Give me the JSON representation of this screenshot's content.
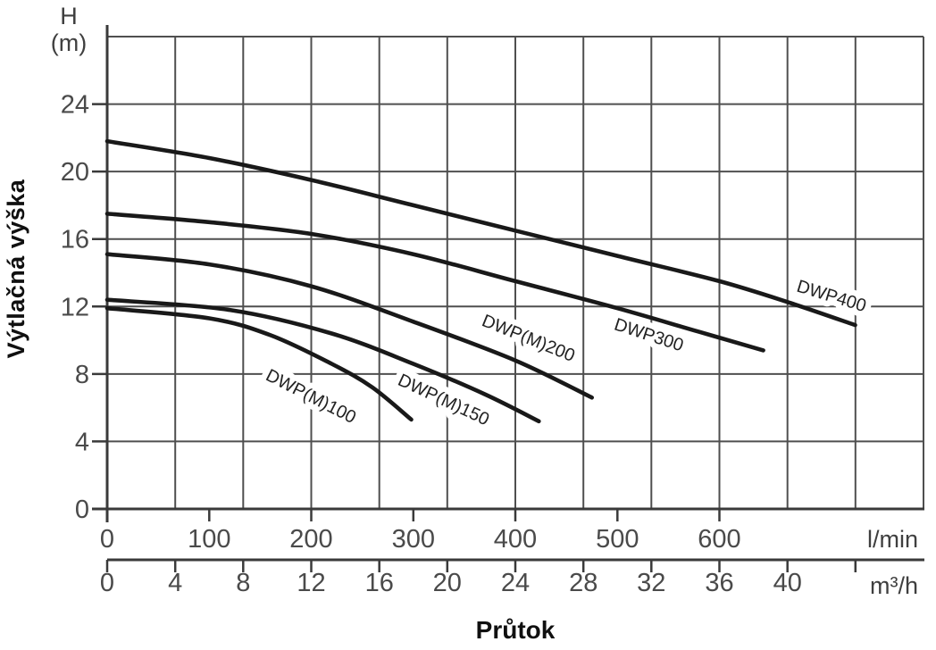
{
  "chart_data": {
    "type": "line",
    "x_title": "Průtok",
    "y_title": "Výtlačná výška",
    "y_axis": {
      "unit_line1": "H",
      "unit_line2": "(m)",
      "range_m": [
        0,
        28
      ],
      "ticks": [
        0,
        4,
        8,
        12,
        16,
        20,
        24
      ],
      "grid_step_m": 4
    },
    "x_axis_primary": {
      "unit": "l/min",
      "range_lmin": [
        0,
        800
      ],
      "ticks": [
        0,
        100,
        200,
        300,
        400,
        500,
        600
      ]
    },
    "x_axis_secondary": {
      "unit": "m³/h",
      "range_m3h": [
        0,
        48
      ],
      "ticks": [
        0,
        4,
        8,
        12,
        16,
        20,
        24,
        28,
        32,
        36,
        40
      ],
      "unlabeled_ticks": [
        44
      ],
      "grid_step_m3h": 4
    },
    "series": [
      {
        "name": "DWP(M)100",
        "points_lmin_m": [
          [
            0,
            11.9
          ],
          [
            100,
            11.3
          ],
          [
            160,
            10.3
          ],
          [
            220,
            8.6
          ],
          [
            260,
            7.2
          ],
          [
            298,
            5.3
          ]
        ],
        "label": {
          "q_lmin": 200,
          "h_m": 6.7,
          "angle_deg": 27
        }
      },
      {
        "name": "DWP(M)150",
        "points_lmin_m": [
          [
            0,
            12.4
          ],
          [
            120,
            11.8
          ],
          [
            220,
            10.4
          ],
          [
            300,
            8.6
          ],
          [
            370,
            6.8
          ],
          [
            423,
            5.2
          ]
        ],
        "label": {
          "q_lmin": 330,
          "h_m": 6.5,
          "angle_deg": 25
        }
      },
      {
        "name": "DWP(M)200",
        "points_lmin_m": [
          [
            0,
            15.1
          ],
          [
            100,
            14.5
          ],
          [
            200,
            13.2
          ],
          [
            300,
            11.1
          ],
          [
            400,
            8.8
          ],
          [
            475,
            6.6
          ]
        ],
        "label": {
          "q_lmin": 413,
          "h_m": 10.15,
          "angle_deg": 22
        }
      },
      {
        "name": "DWP300",
        "points_lmin_m": [
          [
            0,
            17.5
          ],
          [
            100,
            17.0
          ],
          [
            200,
            16.3
          ],
          [
            300,
            15.1
          ],
          [
            400,
            13.5
          ],
          [
            500,
            11.9
          ],
          [
            580,
            10.5
          ],
          [
            643,
            9.4
          ]
        ],
        "label": {
          "q_lmin": 531,
          "h_m": 10.35,
          "angle_deg": 18
        }
      },
      {
        "name": "DWP400",
        "points_lmin_m": [
          [
            0,
            21.8
          ],
          [
            100,
            20.8
          ],
          [
            200,
            19.5
          ],
          [
            300,
            18.0
          ],
          [
            400,
            16.5
          ],
          [
            500,
            15.0
          ],
          [
            600,
            13.5
          ],
          [
            670,
            12.2
          ],
          [
            733,
            10.9
          ]
        ],
        "label": {
          "q_lmin": 710,
          "h_m": 12.65,
          "angle_deg": 17
        }
      }
    ],
    "legend_position": "on-curve",
    "grid": "on"
  },
  "colors": {
    "background": "#ffffff",
    "grid": "#4f4f4f",
    "axis": "#3a3a3a",
    "curve": "#191919",
    "tick_text": "#4a4a4a",
    "title_text": "#101010",
    "curve_label_text": "#222222",
    "label_halo": "#ffffff"
  }
}
